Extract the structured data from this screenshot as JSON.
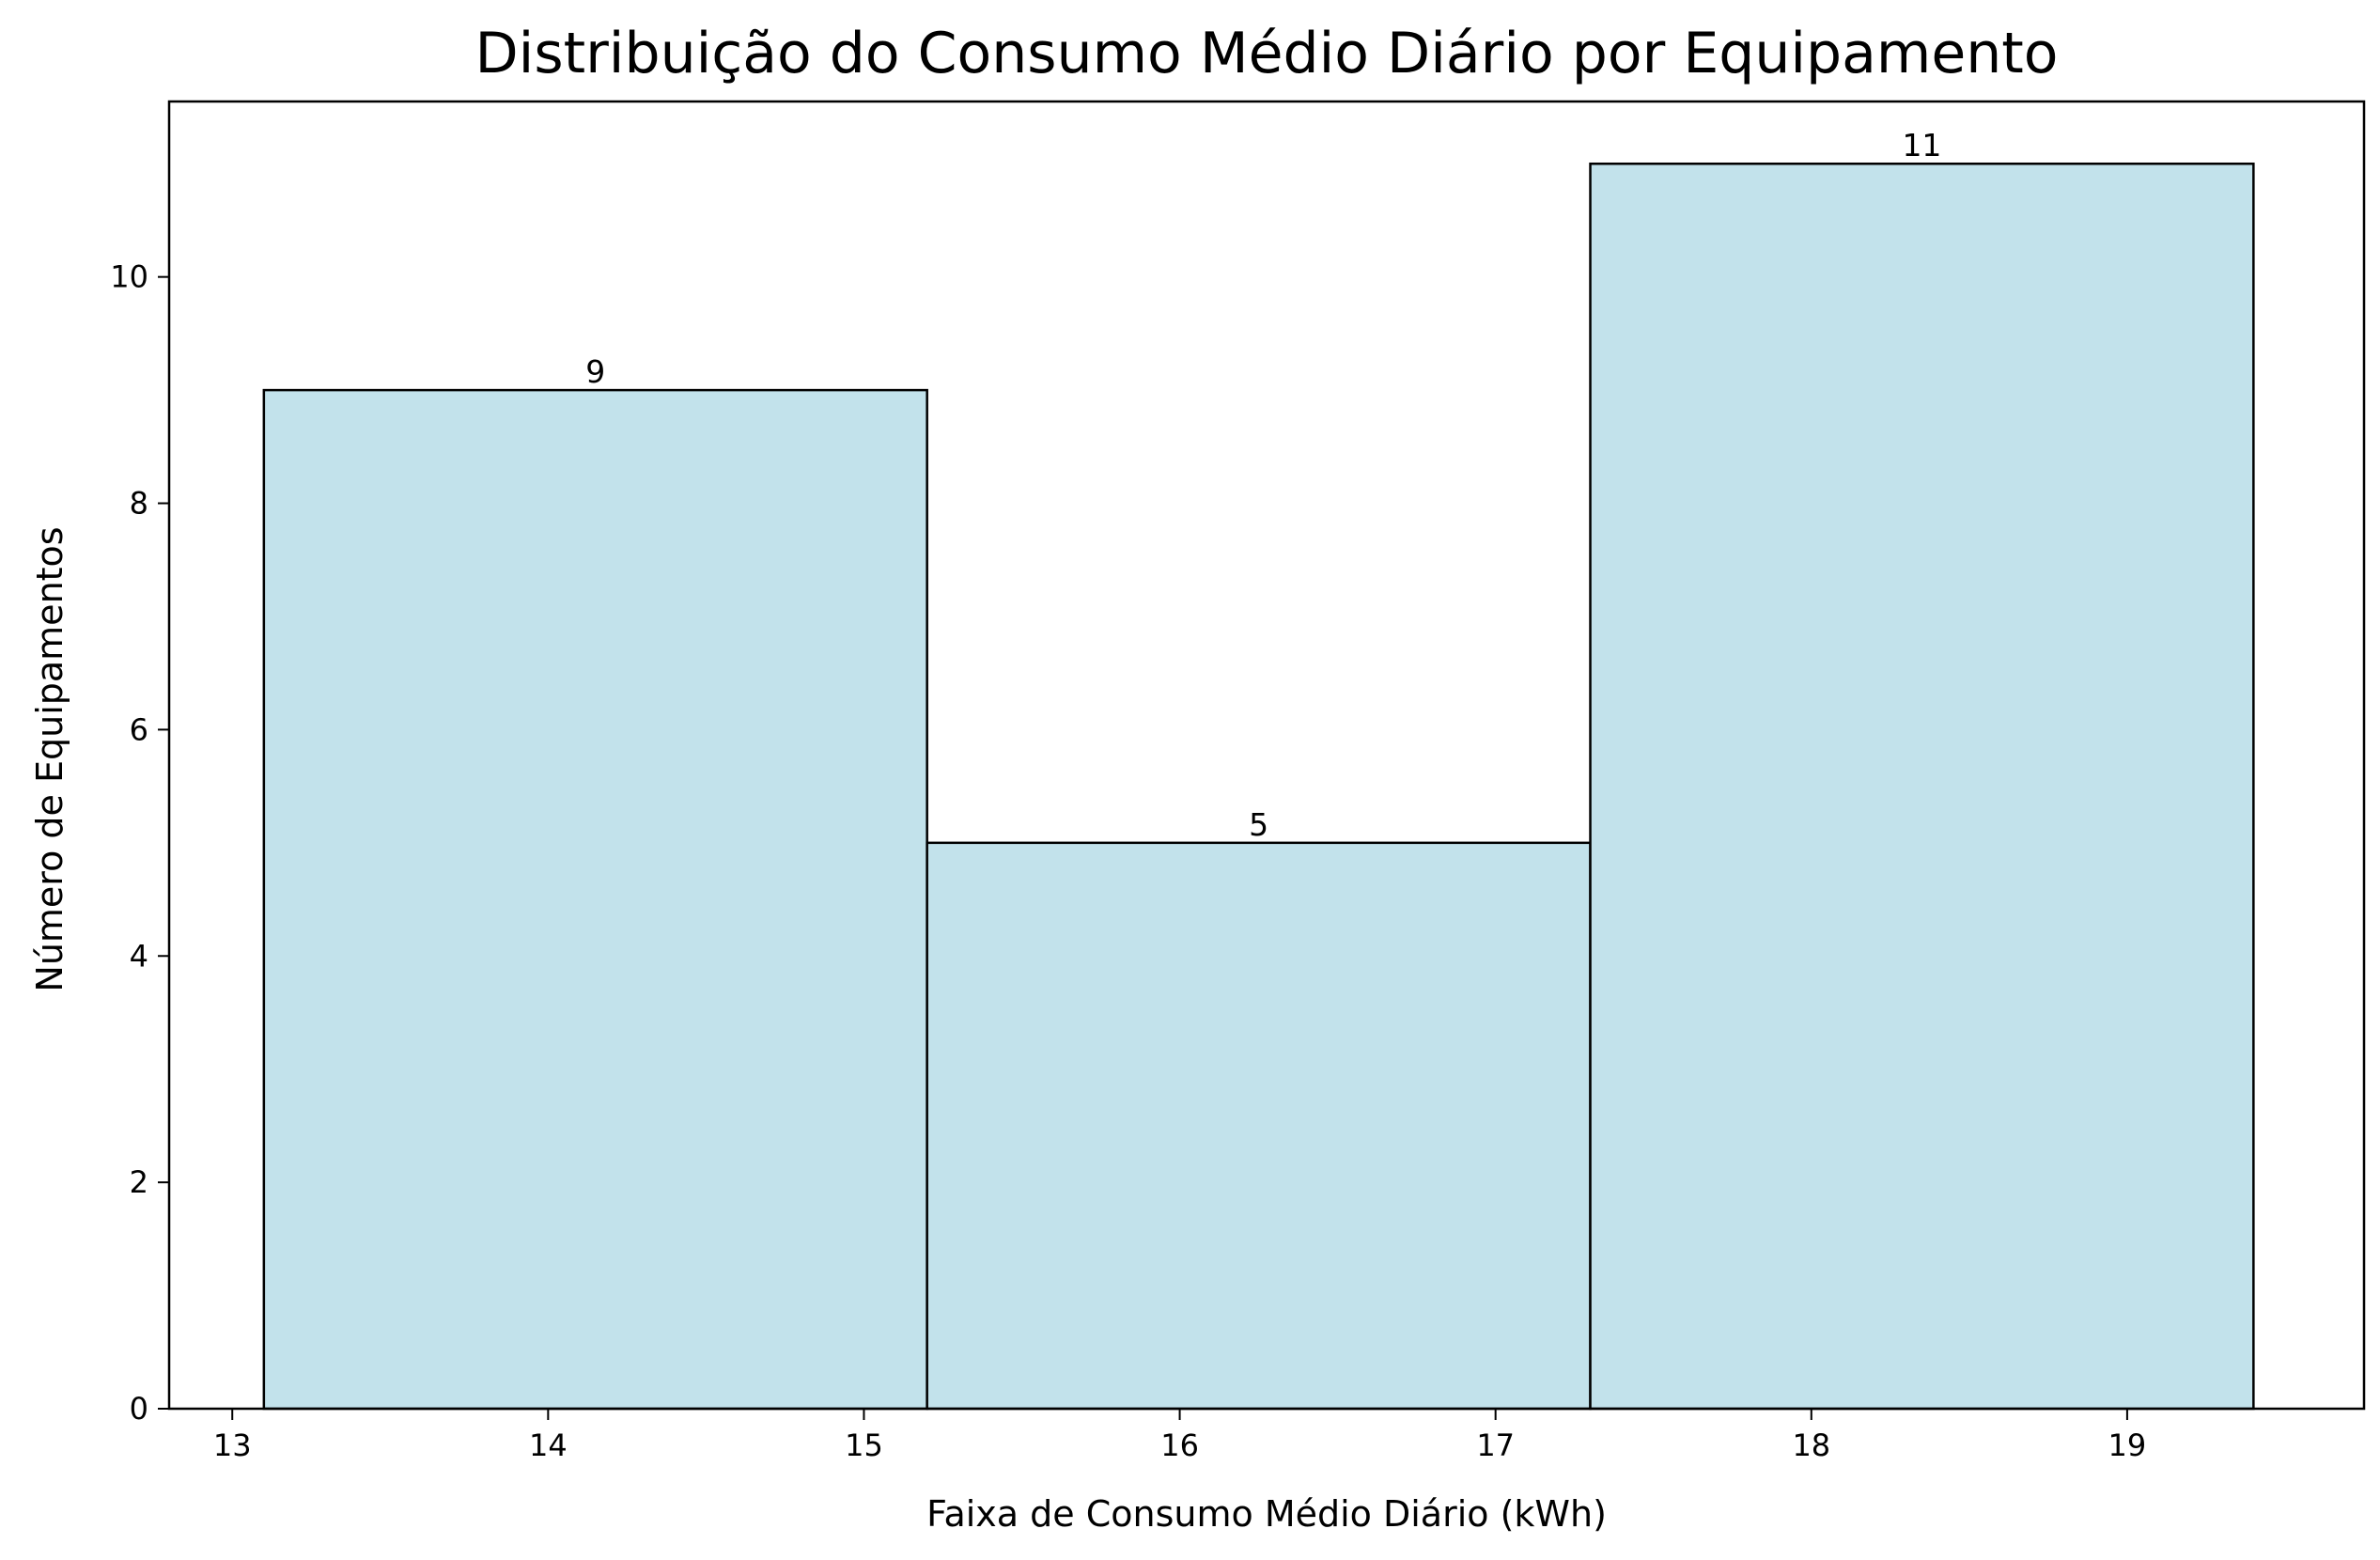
{
  "chart_data": {
    "type": "bar",
    "title": "Distribuição do Consumo Médio Diário por Equipamento",
    "xlabel": "Faixa de Consumo Médio Diário (kWh)",
    "ylabel": "Número de Equipamentos",
    "bins": [
      {
        "start": 13.1,
        "end": 15.2,
        "count": 9
      },
      {
        "start": 15.2,
        "end": 17.3,
        "count": 5
      },
      {
        "start": 17.3,
        "end": 19.4,
        "count": 11
      }
    ],
    "x_ticks": [
      "13",
      "14",
      "15",
      "16",
      "17",
      "18",
      "19"
    ],
    "y_ticks": [
      "0",
      "2",
      "4",
      "6",
      "8",
      "10"
    ],
    "xlim": [
      12.8,
      19.75
    ],
    "ylim": [
      0,
      11.55
    ],
    "bar_labels": [
      "9",
      "5",
      "11"
    ],
    "grid": false,
    "colors": {
      "bar_fill": "#c2e2eb",
      "bar_edge": "#000000"
    }
  }
}
